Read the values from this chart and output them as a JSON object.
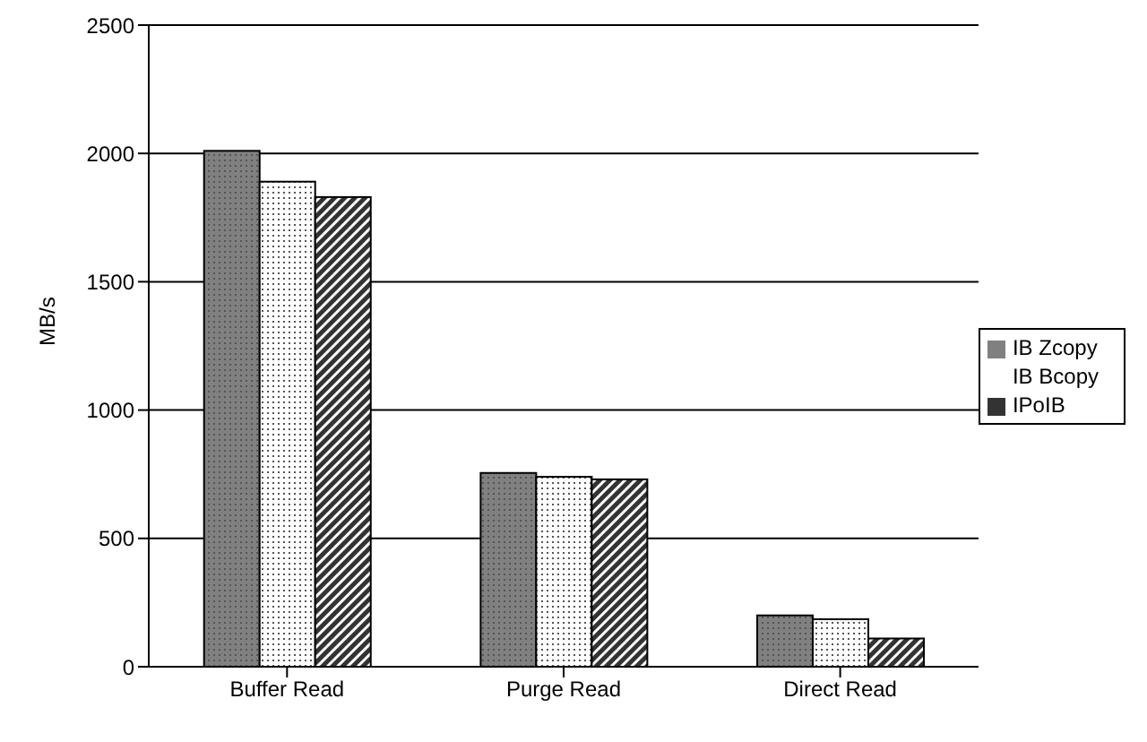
{
  "chart_data": {
    "type": "bar",
    "ylabel": "MB/s",
    "categories": [
      "Buffer Read",
      "Purge Read",
      "Direct Read"
    ],
    "series": [
      {
        "name": "IB Zcopy",
        "color": "#808080",
        "values": [
          2010,
          755,
          200
        ]
      },
      {
        "name": "IB Bcopy",
        "color": "#ffffff",
        "values": [
          1890,
          740,
          185
        ]
      },
      {
        "name": "IPoIB",
        "color": "#333333",
        "values": [
          1830,
          730,
          110
        ]
      }
    ],
    "ylim": [
      0,
      2500
    ],
    "yticks": [
      0,
      500,
      1000,
      1500,
      2000,
      2500
    ],
    "grid": "y",
    "legend": "right"
  }
}
